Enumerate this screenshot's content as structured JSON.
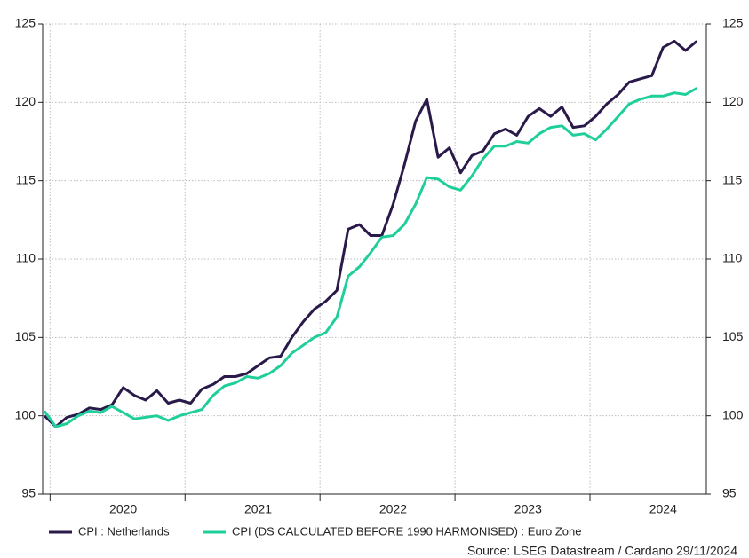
{
  "chart_data": {
    "type": "line",
    "categories": [
      null,
      null,
      null,
      null,
      null,
      null,
      null,
      "2020",
      null,
      null,
      null,
      null,
      null,
      null,
      null,
      null,
      null,
      null,
      null,
      "2021",
      null,
      null,
      null,
      null,
      null,
      null,
      null,
      null,
      null,
      null,
      null,
      "2022",
      null,
      null,
      null,
      null,
      null,
      null,
      null,
      null,
      null,
      null,
      null,
      "2023",
      null,
      null,
      null,
      null,
      null,
      null,
      null,
      null,
      null,
      null,
      null,
      "2024",
      null,
      null,
      null
    ],
    "series": [
      {
        "name": "CPI : Netherlands",
        "color": "#2a1a4a",
        "values": [
          100.0,
          99.3,
          99.9,
          100.1,
          100.5,
          100.4,
          100.7,
          101.8,
          101.3,
          101.0,
          101.6,
          100.8,
          101.0,
          100.8,
          101.7,
          102.0,
          102.5,
          102.5,
          102.7,
          103.2,
          103.7,
          103.8,
          105.0,
          106.0,
          106.8,
          107.3,
          108.0,
          111.9,
          112.2,
          111.5,
          111.5,
          113.5,
          116.0,
          118.8,
          120.2,
          116.5,
          117.1,
          115.5,
          116.6,
          116.9,
          118.0,
          118.3,
          117.9,
          119.1,
          119.6,
          119.1,
          119.7,
          118.4,
          118.5,
          119.1,
          119.9,
          120.5,
          121.3,
          121.5,
          121.7,
          123.5,
          123.9,
          123.3,
          123.9
        ]
      },
      {
        "name": "CPI (DS CALCULATED BEFORE 1990 HARMONISED) : Euro Zone",
        "color": "#1fcf9a",
        "values": [
          100.3,
          99.3,
          99.5,
          100.0,
          100.3,
          100.2,
          100.6,
          100.2,
          99.8,
          99.9,
          100.0,
          99.7,
          100.0,
          100.2,
          100.4,
          101.3,
          101.9,
          102.1,
          102.5,
          102.4,
          102.7,
          103.2,
          104.0,
          104.5,
          105.0,
          105.3,
          106.3,
          108.9,
          109.5,
          110.4,
          111.4,
          111.5,
          112.2,
          113.5,
          115.2,
          115.1,
          114.6,
          114.4,
          115.3,
          116.4,
          117.2,
          117.2,
          117.5,
          117.4,
          118.0,
          118.4,
          118.5,
          117.9,
          118.0,
          117.6,
          118.3,
          119.1,
          119.9,
          120.2,
          120.4,
          120.4,
          120.6,
          120.5,
          120.9
        ]
      }
    ],
    "ylim": [
      95,
      125
    ],
    "yticks": [
      95,
      100,
      105,
      110,
      115,
      120,
      125
    ],
    "y2lim": [
      95,
      125
    ],
    "y2ticks": [
      95,
      100,
      105,
      110,
      115,
      120,
      125
    ],
    "grid": true,
    "source": "Source: LSEG Datastream / Cardano  29/11/2024"
  }
}
